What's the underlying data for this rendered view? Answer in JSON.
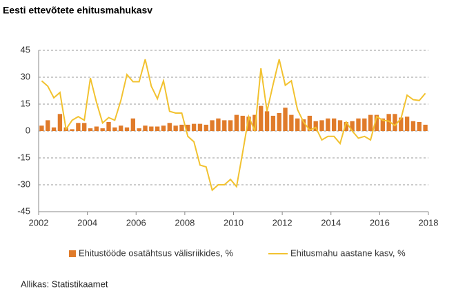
{
  "chart_data": {
    "type": "bar+line",
    "title": "Eesti ettevõtete ehitusmahukasv",
    "source": "Allikas:  Statistikaamet",
    "x": [
      2002.125,
      2002.375,
      2002.625,
      2002.875,
      2003.125,
      2003.375,
      2003.625,
      2003.875,
      2004.125,
      2004.375,
      2004.625,
      2004.875,
      2005.125,
      2005.375,
      2005.625,
      2005.875,
      2006.125,
      2006.375,
      2006.625,
      2006.875,
      2007.125,
      2007.375,
      2007.625,
      2007.875,
      2008.125,
      2008.375,
      2008.625,
      2008.875,
      2009.125,
      2009.375,
      2009.625,
      2009.875,
      2010.125,
      2010.375,
      2010.625,
      2010.875,
      2011.125,
      2011.375,
      2011.625,
      2011.875,
      2012.125,
      2012.375,
      2012.625,
      2012.875,
      2013.125,
      2013.375,
      2013.625,
      2013.875,
      2014.125,
      2014.375,
      2014.625,
      2014.875,
      2015.125,
      2015.375,
      2015.625,
      2015.875,
      2016.125,
      2016.375,
      2016.625,
      2016.875,
      2017.125,
      2017.375,
      2017.625,
      2017.875
    ],
    "series": [
      {
        "name": "Ehitustööde osatähtsus välisriikides, %",
        "color": "#e07b2a",
        "type": "bar",
        "values": [
          3,
          6,
          2,
          9.5,
          2,
          1,
          4.5,
          4.5,
          1.5,
          2.5,
          1.5,
          5,
          2,
          3,
          2,
          7,
          1.5,
          3,
          2.5,
          2.5,
          3,
          4.5,
          3,
          3.5,
          3.5,
          4,
          4,
          3.5,
          6,
          7,
          6,
          6,
          9,
          8.5,
          8,
          9,
          14,
          11,
          8.5,
          10,
          13,
          9,
          7,
          6.5,
          8.5,
          5.5,
          6,
          7,
          7,
          6,
          5,
          5.5,
          7,
          7,
          9,
          9,
          7,
          9.5,
          9.5,
          7.5,
          8,
          5.5,
          5,
          3.5
        ]
      },
      {
        "name": "Ehitusmahu aastane kasv, %",
        "color": "#f2c230",
        "type": "line",
        "values": [
          28,
          25,
          18.5,
          21.5,
          1,
          6,
          8,
          6,
          29.5,
          16,
          4.5,
          7.5,
          6,
          17,
          31.5,
          27.5,
          27.5,
          40,
          25,
          18,
          28,
          11,
          10,
          10,
          -3,
          -6,
          -19,
          -20,
          -33,
          -30,
          -30,
          -27,
          -31,
          -12,
          8,
          0,
          35,
          11,
          26,
          40,
          25.5,
          28,
          12,
          5,
          0.5,
          2,
          -5,
          -3,
          -3,
          -7,
          5,
          0,
          -4,
          -3,
          -5,
          8,
          6,
          5.5,
          3,
          7,
          20,
          17.5,
          17,
          21
        ]
      }
    ],
    "xlim": [
      2002,
      2018
    ],
    "xticks": [
      2002,
      2004,
      2006,
      2008,
      2010,
      2012,
      2014,
      2016,
      2018
    ],
    "ylim": [
      -45,
      45
    ],
    "yticks": [
      -45,
      -30,
      -15,
      0,
      15,
      30,
      45
    ],
    "grid": true
  }
}
